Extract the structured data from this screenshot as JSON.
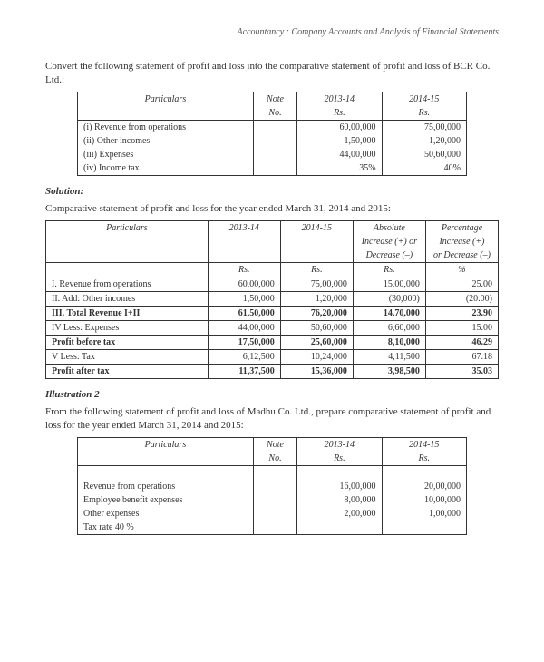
{
  "header": "Accountancy : Company Accounts and Analysis of Financial Statements",
  "intro": "Convert the following statement of profit and loss into the comparative statement of profit and loss of BCR Co. Ltd.:",
  "table1": {
    "headers": {
      "particulars": "Particulars",
      "note": "Note",
      "no": "No.",
      "y1": "2013-14",
      "y2": "2014-15",
      "rs": "Rs."
    },
    "rows": [
      {
        "label": "(i)   Revenue from operations",
        "y1": "60,00,000",
        "y2": "75,00,000"
      },
      {
        "label": "(ii)  Other incomes",
        "y1": "1,50,000",
        "y2": "1,20,000"
      },
      {
        "label": "(iii) Expenses",
        "y1": "44,00,000",
        "y2": "50,60,000"
      },
      {
        "label": "(iv)  Income tax",
        "y1": "35%",
        "y2": "40%"
      }
    ]
  },
  "solution_label": "Solution:",
  "solution_intro": "Comparative statement of profit and loss for the year ended March 31, 2014 and 2015:",
  "table2": {
    "headers": {
      "particulars": "Particulars",
      "y1": "2013-14",
      "y2": "2014-15",
      "abs1": "Absolute",
      "abs2": "Increase (+) or",
      "abs3": "Decrease (–)",
      "pct1": "Percentage",
      "pct2": "Increase (+)",
      "pct3": "or Decrease (–)",
      "rs": "Rs.",
      "pct": "%"
    },
    "rows": [
      {
        "label": "I.  Revenue from operations",
        "y1": "60,00,000",
        "y2": "75,00,000",
        "abs": "15,00,000",
        "pct": "25.00",
        "bold": false
      },
      {
        "label": "II. Add: Other incomes",
        "y1": "1,50,000",
        "y2": "1,20,000",
        "abs": "(30,000)",
        "pct": "(20.00)",
        "bold": false
      },
      {
        "label": "III. Total Revenue I+II",
        "y1": "61,50,000",
        "y2": "76,20,000",
        "abs": "14,70,000",
        "pct": "23.90",
        "bold": true
      },
      {
        "label": "IV  Less: Expenses",
        "y1": "44,00,000",
        "y2": "50,60,000",
        "abs": "6,60,000",
        "pct": "15.00",
        "bold": false
      },
      {
        "label": "     Profit before tax",
        "y1": "17,50,000",
        "y2": "25,60,000",
        "abs": "8,10,000",
        "pct": "46.29",
        "bold": true
      },
      {
        "label": "V   Less: Tax",
        "y1": "6,12,500",
        "y2": "10,24,000",
        "abs": "4,11,500",
        "pct": "67.18",
        "bold": false
      },
      {
        "label": "     Profit after tax",
        "y1": "11,37,500",
        "y2": "15,36,000",
        "abs": "3,98,500",
        "pct": "35.03",
        "bold": true
      }
    ]
  },
  "illustration_label": "Illustration  2",
  "illustration_intro": "From the following statement of profit and loss of Madhu Co. Ltd., prepare comparative statement of profit and loss for the year ended March 31, 2014 and 2015:",
  "table3": {
    "headers": {
      "particulars": "Particulars",
      "note": "Note",
      "no": "No.",
      "y1": "2013-14",
      "y2": "2014-15",
      "rs": "Rs."
    },
    "rows": [
      {
        "label": "Revenue from operations",
        "y1": "16,00,000",
        "y2": "20,00,000"
      },
      {
        "label": "Employee benefit expenses",
        "y1": "8,00,000",
        "y2": "10,00,000"
      },
      {
        "label": "Other expenses",
        "y1": "2,00,000",
        "y2": "1,00,000"
      },
      {
        "label": "Tax rate 40 %",
        "y1": "",
        "y2": ""
      }
    ]
  }
}
